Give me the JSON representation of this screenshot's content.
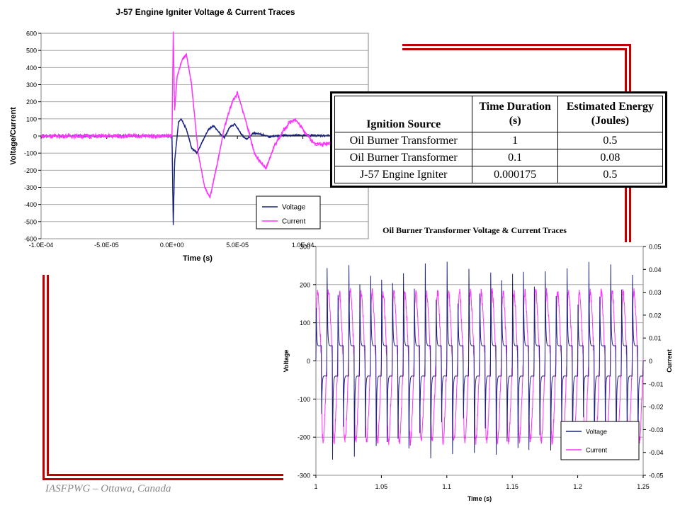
{
  "footer_text": "IASFPWG – Ottawa, Canada",
  "colors": {
    "frame": "#c00000",
    "voltage": "#1a237e",
    "current": "#ff33ff",
    "grid": "#999999",
    "plot_bg": "#ffffff"
  },
  "table": {
    "headers": [
      "Ignition Source",
      "Time Duration (s)",
      "Estimated Energy (Joules)"
    ],
    "rows": [
      {
        "source": "Oil Burner Transformer",
        "duration": "1",
        "energy": "0.5"
      },
      {
        "source": "Oil Burner Transformer",
        "duration": "0.1",
        "energy": "0.08"
      },
      {
        "source": "J-57 Engine Igniter",
        "duration": "0.000175",
        "energy": "0.5"
      }
    ]
  },
  "chart_data": [
    {
      "type": "line",
      "title": "J-57 Engine Igniter Voltage & Current Traces",
      "xlabel": "Time (s)",
      "ylabel": "Voltage/Current",
      "xlim": [
        -0.0001,
        0.00015
      ],
      "ylim": [
        -600,
        600
      ],
      "x_tick_labels": [
        "-1.0E-04",
        "-5.0E-05",
        "0.0E+00",
        "5.0E-05",
        "1.0E-04"
      ],
      "x_ticks": [
        -0.0001,
        -5e-05,
        0,
        5e-05,
        0.0001
      ],
      "y_ticks": [
        -600,
        -500,
        -400,
        -300,
        -200,
        -100,
        0,
        100,
        200,
        300,
        400,
        500,
        600
      ],
      "grid": "horizontal",
      "legend_position": "bottom-right",
      "series": [
        {
          "name": "Voltage",
          "color": "#1a237e",
          "points": [
            [
              -0.0001,
              0
            ],
            [
              0,
              0
            ],
            [
              1e-06,
              -520
            ],
            [
              2e-06,
              -150
            ],
            [
              5e-06,
              80
            ],
            [
              7e-06,
              100
            ],
            [
              1.1e-05,
              40
            ],
            [
              1.5e-05,
              -70
            ],
            [
              1.9e-05,
              -100
            ],
            [
              2.4e-05,
              -20
            ],
            [
              2.8e-05,
              40
            ],
            [
              3.2e-05,
              60
            ],
            [
              3.6e-05,
              20
            ],
            [
              4e-05,
              -10
            ],
            [
              4.4e-05,
              50
            ],
            [
              4.8e-05,
              70
            ],
            [
              5.3e-05,
              10
            ],
            [
              5.7e-05,
              -20
            ],
            [
              6.2e-05,
              15
            ],
            [
              6.8e-05,
              10
            ],
            [
              7.5e-05,
              -5
            ],
            [
              8.5e-05,
              5
            ],
            [
              0.00015,
              0
            ]
          ]
        },
        {
          "name": "Current",
          "color": "#ff33ff",
          "points": [
            [
              -0.0001,
              0
            ],
            [
              0,
              0
            ],
            [
              1e-06,
              610
            ],
            [
              2e-06,
              150
            ],
            [
              4e-06,
              350
            ],
            [
              8e-06,
              450
            ],
            [
              1.1e-05,
              480
            ],
            [
              1.5e-05,
              300
            ],
            [
              2e-05,
              -100
            ],
            [
              2.5e-05,
              -300
            ],
            [
              2.9e-05,
              -360
            ],
            [
              3.5e-05,
              -150
            ],
            [
              4e-05,
              50
            ],
            [
              4.6e-05,
              200
            ],
            [
              5e-05,
              250
            ],
            [
              5.6e-05,
              100
            ],
            [
              6.3e-05,
              -100
            ],
            [
              6.8e-05,
              -160
            ],
            [
              7.2e-05,
              -190
            ],
            [
              7.8e-05,
              -60
            ],
            [
              8.5e-05,
              30
            ],
            [
              9e-05,
              80
            ],
            [
              9.4e-05,
              100
            ],
            [
              0.0001,
              40
            ],
            [
              0.000108,
              -40
            ],
            [
              0.000115,
              -50
            ],
            [
              0.00013,
              -20
            ],
            [
              0.00015,
              -10
            ]
          ]
        }
      ]
    },
    {
      "type": "line",
      "title": "Oil Burner Transformer Voltage & Current Traces",
      "xlabel": "Time (s)",
      "ylabel": "Voltage",
      "y2label": "Current",
      "xlim": [
        1,
        1.25
      ],
      "ylim": [
        -300,
        300
      ],
      "y2lim": [
        -0.05,
        0.05
      ],
      "x_ticks": [
        1,
        1.05,
        1.1,
        1.15,
        1.2,
        1.25
      ],
      "x_tick_labels": [
        "1",
        "1.05",
        "1.1",
        "1.15",
        "1.2",
        "1.25"
      ],
      "y_ticks": [
        -300,
        -200,
        -100,
        0,
        100,
        200,
        300
      ],
      "y2_ticks": [
        -0.05,
        -0.04,
        -0.03,
        -0.02,
        -0.01,
        0,
        0.01,
        0.02,
        0.03,
        0.04,
        0.05
      ],
      "y2_tick_labels": [
        "-0.05",
        "-0.04",
        "-0.03",
        "-0.02",
        "-0.01",
        "0",
        "0.01",
        "0.02",
        "0.03",
        "0.04",
        "0.05"
      ],
      "grid": "horizontal",
      "legend_position": "bottom-right",
      "periods": 30,
      "series": [
        {
          "name": "Voltage",
          "color": "#1a237e",
          "axis": "left",
          "peak": 260,
          "trough": -260
        },
        {
          "name": "Current",
          "color": "#ff33ff",
          "axis": "right",
          "peak": 0.03,
          "trough": -0.035
        }
      ]
    }
  ]
}
